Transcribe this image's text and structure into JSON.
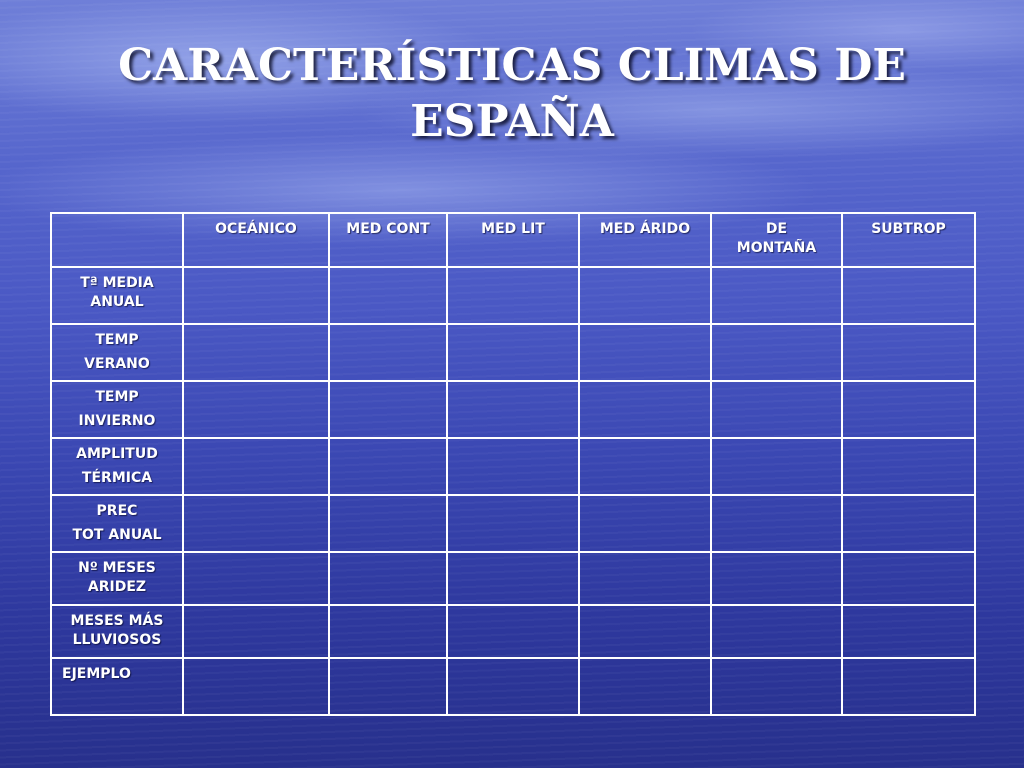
{
  "title_lines": [
    "CARACTERÍSTICAS CLIMAS DE",
    "ESPAÑA"
  ],
  "table": {
    "corner": "",
    "columns": [
      [
        "OCEÁNICO"
      ],
      [
        "MED CONT"
      ],
      [
        "MED LIT"
      ],
      [
        "MED ÁRIDO"
      ],
      [
        "DE",
        "MONTAÑA"
      ],
      [
        "SUBTROP"
      ]
    ],
    "rows": [
      [
        "Tª MEDIA",
        "ANUAL"
      ],
      [
        "TEMP",
        "VERANO"
      ],
      [
        "TEMP",
        "INVIERNO"
      ],
      [
        "AMPLITUD",
        "TÉRMICA"
      ],
      [
        "PREC",
        "TOT ANUAL"
      ],
      [
        "Nº MESES",
        "ARIDEZ"
      ],
      [
        "MESES MÁS",
        "LLUVIOSOS"
      ],
      [
        "EJEMPLO"
      ]
    ],
    "cells": [
      [
        "",
        "",
        "",
        "",
        "",
        ""
      ],
      [
        "",
        "",
        "",
        "",
        "",
        ""
      ],
      [
        "",
        "",
        "",
        "",
        "",
        ""
      ],
      [
        "",
        "",
        "",
        "",
        "",
        ""
      ],
      [
        "",
        "",
        "",
        "",
        "",
        ""
      ],
      [
        "",
        "",
        "",
        "",
        "",
        ""
      ],
      [
        "",
        "",
        "",
        "",
        "",
        ""
      ],
      [
        "",
        "",
        "",
        "",
        "",
        ""
      ]
    ]
  }
}
